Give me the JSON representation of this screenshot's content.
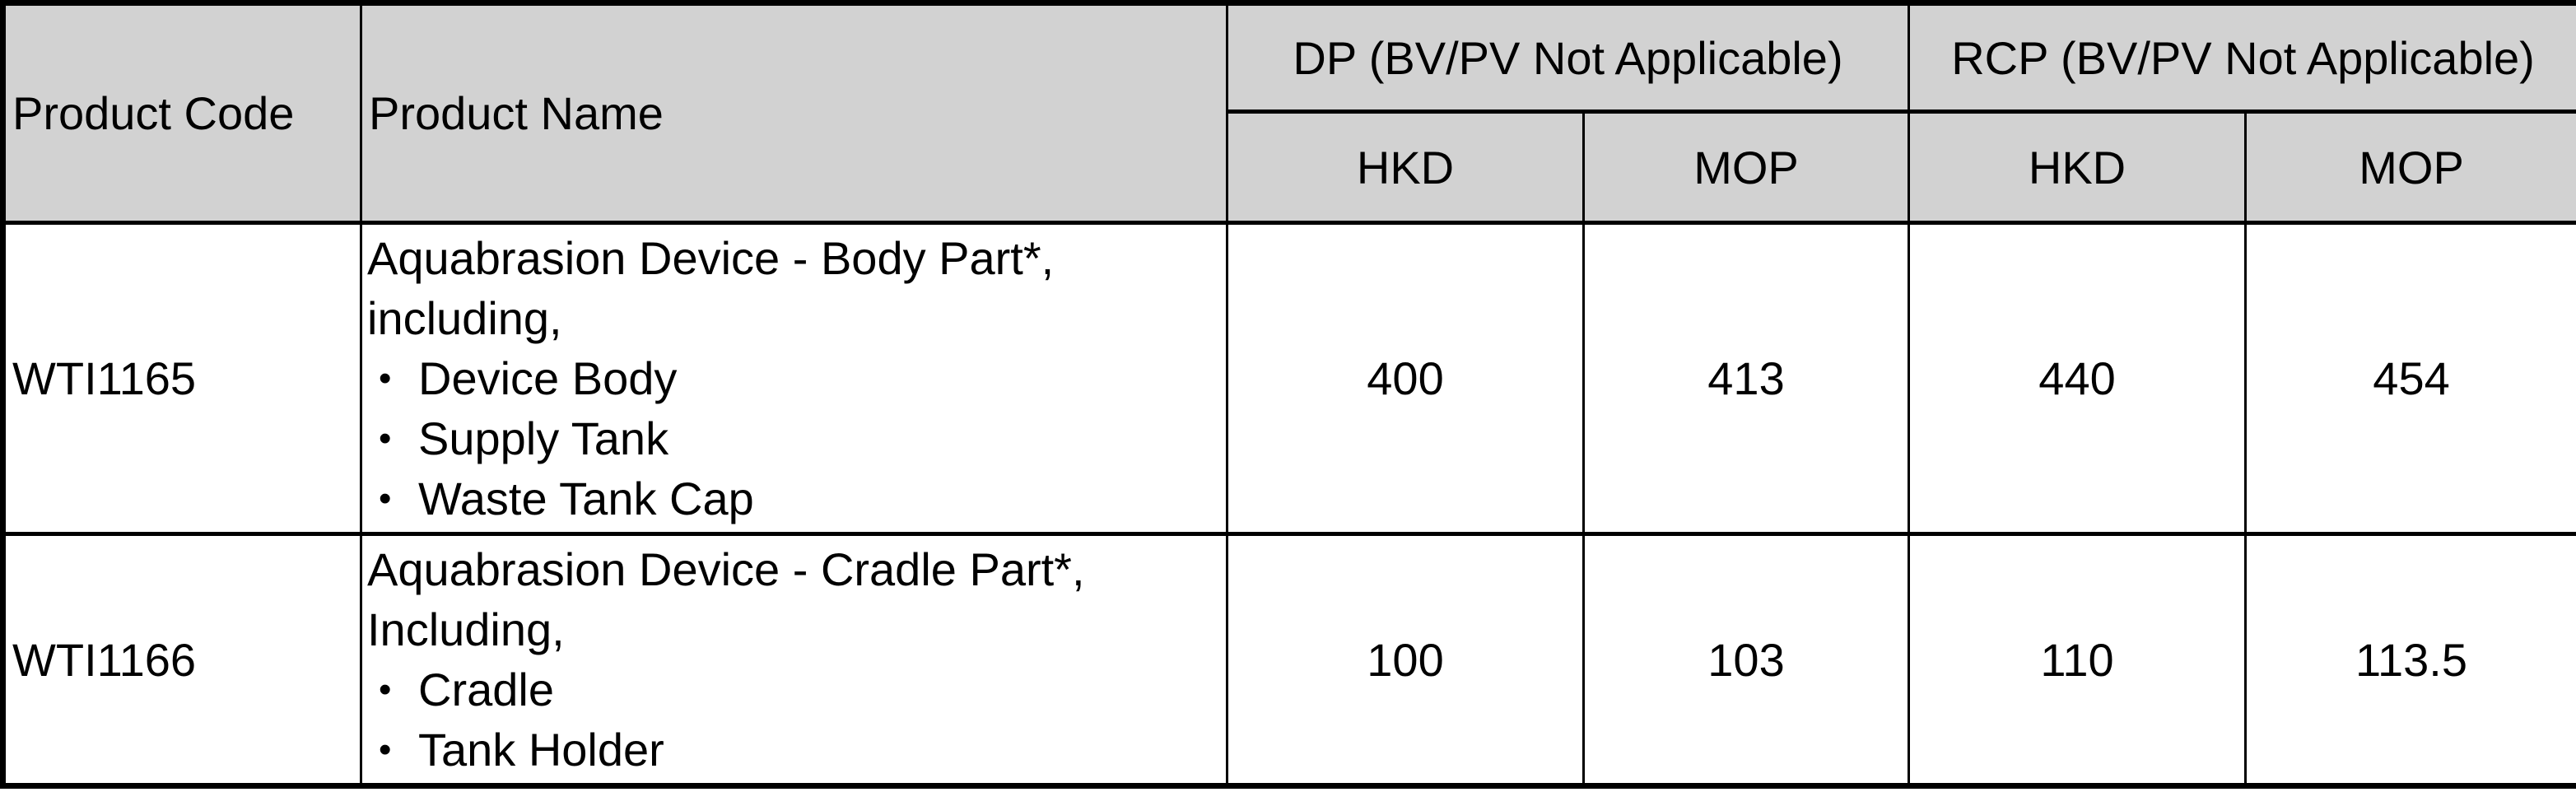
{
  "table": {
    "header": {
      "col_product_code": "Product Code",
      "col_product_name": "Product Name",
      "group_dp": "DP (BV/PV Not Applicable)",
      "group_rcp": "RCP (BV/PV Not Applicable)",
      "sub_dp_hkd": "HKD",
      "sub_dp_mop": "MOP",
      "sub_rcp_hkd": "HKD",
      "sub_rcp_mop": "MOP"
    },
    "bullet_char": "•",
    "rows": [
      {
        "product_code": "WTI1165",
        "name_line_1": "Aquabrasion Device - Body Part*,",
        "name_line_2": "including,",
        "bullets": [
          "Device Body",
          "Supply Tank",
          "Waste Tank Cap"
        ],
        "dp_hkd": "400",
        "dp_mop": "413",
        "rcp_hkd": "440",
        "rcp_mop": "454"
      },
      {
        "product_code": "WTI1166",
        "name_line_1": "Aquabrasion Device - Cradle Part*,",
        "name_line_2": "Including,",
        "bullets": [
          "Cradle",
          "Tank Holder"
        ],
        "dp_hkd": "100",
        "dp_mop": "103",
        "rcp_hkd": "110",
        "rcp_mop": "113.5"
      }
    ],
    "colors": {
      "header_bg": "#d2d2d2",
      "border": "#000000",
      "body_bg": "#ffffff"
    }
  }
}
